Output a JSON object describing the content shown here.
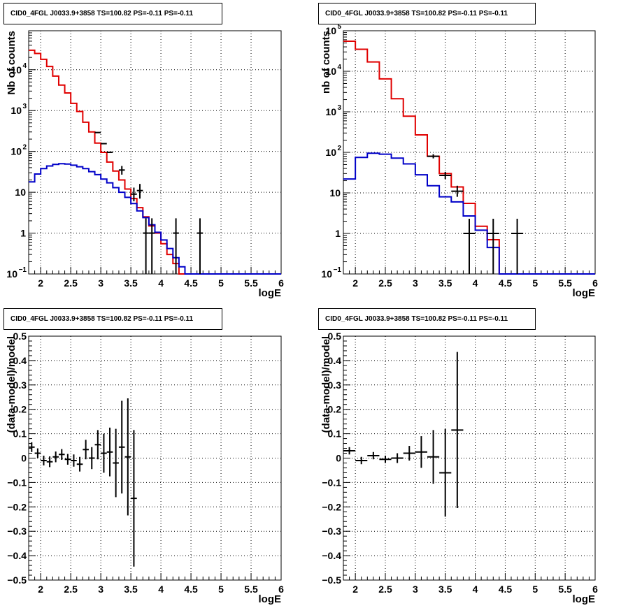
{
  "chart_data": [
    {
      "type": "histogram",
      "title": "CID0_4FGL J0033.9+3858 TS=100.82 PS=-0.11 PS=-0.11",
      "xlabel": "logE",
      "ylabel": "Nb of counts",
      "xlim": [
        1.8,
        6.0
      ],
      "ylim": [
        0.1,
        90000
      ],
      "yscale": "log",
      "grid": true,
      "x_ticks": [
        "2",
        "2.5",
        "3",
        "3.5",
        "4",
        "4.5",
        "5",
        "5.5",
        "6"
      ],
      "y_ticks": [
        {
          "v": 0.1,
          "label": "10",
          "exp": "−1"
        },
        {
          "v": 1,
          "label": "1",
          "exp": ""
        },
        {
          "v": 10,
          "label": "10",
          "exp": ""
        },
        {
          "v": 100,
          "label": "10",
          "exp": "2"
        },
        {
          "v": 1000,
          "label": "10",
          "exp": "3"
        },
        {
          "v": 10000,
          "label": "10",
          "exp": "4"
        }
      ],
      "bin_edges": [
        1.8,
        1.9,
        2.0,
        2.1,
        2.2,
        2.3,
        2.4,
        2.5,
        2.6,
        2.7,
        2.8,
        2.9,
        3.0,
        3.1,
        3.2,
        3.3,
        3.4,
        3.5,
        3.6,
        3.7,
        3.8,
        3.9,
        4.0,
        4.1,
        4.2,
        4.3,
        4.4,
        4.5,
        4.6,
        4.7,
        4.8,
        4.9,
        5.0,
        5.1,
        5.2,
        5.3,
        5.4,
        5.5,
        5.6,
        5.7,
        5.8,
        5.9,
        6.0
      ],
      "series": [
        {
          "name": "",
          "kind": "model-total",
          "color": "#e00000",
          "values": [
            30000,
            25000,
            18000,
            12000,
            7000,
            4200,
            2700,
            1500,
            950,
            520,
            300,
            160,
            95,
            55,
            33,
            20,
            12,
            7,
            4.2,
            2.5,
            1.5,
            1.0,
            0.55,
            0.3,
            0.18,
            0.1,
            0.1,
            0.1,
            0.1,
            0.1,
            0.1,
            0.1,
            0.1,
            0.1,
            0.1,
            0.1,
            0.1,
            0.1,
            0.1,
            0.1,
            0.1,
            0.1
          ]
        },
        {
          "name": "",
          "kind": "model-component",
          "color": "#0000c8",
          "values": [
            18,
            28,
            38,
            44,
            48,
            50,
            49,
            46,
            42,
            38,
            32,
            27,
            21,
            17,
            13,
            10,
            7.5,
            5.3,
            3.5,
            2.4,
            1.6,
            1.05,
            0.68,
            0.42,
            0.25,
            0.15,
            0.1,
            0.1,
            0.1,
            0.1,
            0.1,
            0.1,
            0.1,
            0.1,
            0.1,
            0.1,
            0.1,
            0.1,
            0.1,
            0.1,
            0.1,
            0.1
          ]
        },
        {
          "name": "",
          "kind": "data",
          "color": "#000000",
          "points": [
            {
              "x": 2.95,
              "y": 290,
              "xerr": 0.05
            },
            {
              "x": 3.05,
              "y": 155,
              "xerr": 0.05
            },
            {
              "x": 3.15,
              "y": 95,
              "xerr": 0.05
            },
            {
              "x": 3.35,
              "y": 35,
              "xerr": 0.05,
              "yerr": [
                8,
                9
              ]
            },
            {
              "x": 3.55,
              "y": 9,
              "xerr": 0.05,
              "yerr": [
                3,
                4
              ]
            },
            {
              "x": 3.65,
              "y": 11,
              "xerr": 0.05,
              "yerr": [
                4,
                5
              ]
            },
            {
              "x": 3.75,
              "y": 1,
              "xerr": 0.05,
              "yerr": [
                0.99,
                1.3
              ]
            },
            {
              "x": 3.85,
              "y": 1,
              "xerr": 0.05,
              "yerr": [
                0.99,
                1.3
              ]
            },
            {
              "x": 4.25,
              "y": 1,
              "xerr": 0.05,
              "yerr": [
                0.99,
                1.3
              ]
            },
            {
              "x": 4.65,
              "y": 1,
              "xerr": 0.05,
              "yerr": [
                0.99,
                1.3
              ]
            }
          ]
        }
      ]
    },
    {
      "type": "histogram",
      "title": "CID0_4FGL J0033.9+3858 TS=100.82 PS=-0.11 PS=-0.11",
      "xlabel": "logE",
      "ylabel": "nb of counts",
      "xlim": [
        1.8,
        6.0
      ],
      "ylim": [
        0.1,
        100000
      ],
      "yscale": "log",
      "grid": true,
      "x_ticks": [
        "2",
        "2.5",
        "3",
        "3.5",
        "4",
        "4.5",
        "5",
        "5.5",
        "6"
      ],
      "y_ticks": [
        {
          "v": 0.1,
          "label": "10",
          "exp": "−1"
        },
        {
          "v": 1,
          "label": "1",
          "exp": ""
        },
        {
          "v": 10,
          "label": "10",
          "exp": ""
        },
        {
          "v": 100,
          "label": "10",
          "exp": "2"
        },
        {
          "v": 1000,
          "label": "10",
          "exp": "3"
        },
        {
          "v": 10000,
          "label": "10",
          "exp": "4"
        },
        {
          "v": 100000,
          "label": "10",
          "exp": "5"
        }
      ],
      "bin_edges": [
        1.8,
        2.0,
        2.2,
        2.4,
        2.6,
        2.8,
        3.0,
        3.2,
        3.4,
        3.6,
        3.8,
        4.0,
        4.2,
        4.4,
        4.6,
        4.8,
        5.0,
        5.2,
        5.4,
        5.6,
        5.8,
        6.0
      ],
      "series": [
        {
          "name": "",
          "kind": "model-total",
          "color": "#e00000",
          "values": [
            55000,
            35000,
            17000,
            6500,
            2100,
            780,
            270,
            80,
            30,
            14,
            5.5,
            1.5,
            0.7,
            0.1,
            0.1,
            0.1,
            0.1,
            0.1,
            0.1,
            0.1,
            0.1
          ]
        },
        {
          "name": "",
          "kind": "model-component",
          "color": "#0000c8",
          "values": [
            22,
            75,
            95,
            90,
            72,
            52,
            28,
            15,
            8,
            6,
            2.7,
            1.2,
            0.45,
            0.1,
            0.1,
            0.1,
            0.1,
            0.1,
            0.1,
            0.1,
            0.1
          ]
        },
        {
          "name": "",
          "kind": "data",
          "color": "#000000",
          "points": [
            {
              "x": 3.3,
              "y": 80,
              "xerr": 0.1,
              "yerr": [
                9,
                10
              ]
            },
            {
              "x": 3.5,
              "y": 27,
              "xerr": 0.1,
              "yerr": [
                5,
                6
              ]
            },
            {
              "x": 3.7,
              "y": 11,
              "xerr": 0.1,
              "yerr": [
                3,
                4
              ]
            },
            {
              "x": 3.9,
              "y": 1,
              "xerr": 0.1,
              "yerr": [
                0.99,
                1.3
              ]
            },
            {
              "x": 4.3,
              "y": 1,
              "xerr": 0.1,
              "yerr": [
                0.99,
                1.3
              ]
            },
            {
              "x": 4.7,
              "y": 1,
              "xerr": 0.1,
              "yerr": [
                0.99,
                1.3
              ]
            }
          ]
        }
      ]
    },
    {
      "type": "scatter",
      "title": "CID0_4FGL J0033.9+3858 TS=100.82 PS=-0.11 PS=-0.11",
      "xlabel": "logE",
      "ylabel": "(data-model)/model",
      "xlim": [
        1.8,
        6.0
      ],
      "ylim": [
        -0.5,
        0.5
      ],
      "yscale": "linear",
      "grid": true,
      "x_ticks": [
        "2",
        "2.5",
        "3",
        "3.5",
        "4",
        "4.5",
        "5",
        "5.5",
        "6"
      ],
      "y_ticks": [
        "−0.5",
        "−0.4",
        "−0.3",
        "−0.2",
        "−0.1",
        "0",
        "0.1",
        "0.2",
        "0.3",
        "0.4",
        "0.5"
      ],
      "series": [
        {
          "name": "",
          "kind": "residuals",
          "color": "#000000",
          "points": [
            {
              "x": 1.85,
              "y": 0.045,
              "xerr": 0.05,
              "yerr": 0.02
            },
            {
              "x": 1.95,
              "y": 0.02,
              "xerr": 0.05,
              "yerr": 0.02
            },
            {
              "x": 2.05,
              "y": -0.01,
              "xerr": 0.05,
              "yerr": 0.02
            },
            {
              "x": 2.15,
              "y": -0.015,
              "xerr": 0.05,
              "yerr": 0.022
            },
            {
              "x": 2.25,
              "y": 0.005,
              "xerr": 0.05,
              "yerr": 0.022
            },
            {
              "x": 2.35,
              "y": 0.015,
              "xerr": 0.05,
              "yerr": 0.022
            },
            {
              "x": 2.45,
              "y": -0.005,
              "xerr": 0.05,
              "yerr": 0.022
            },
            {
              "x": 2.55,
              "y": -0.01,
              "xerr": 0.05,
              "yerr": 0.025
            },
            {
              "x": 2.65,
              "y": -0.025,
              "xerr": 0.05,
              "yerr": 0.03
            },
            {
              "x": 2.75,
              "y": 0.035,
              "xerr": 0.05,
              "yerr": 0.04
            },
            {
              "x": 2.85,
              "y": 0.0,
              "xerr": 0.05,
              "yerr": 0.045
            },
            {
              "x": 2.95,
              "y": 0.055,
              "xerr": 0.05,
              "yerr": 0.06
            },
            {
              "x": 3.05,
              "y": 0.02,
              "xerr": 0.05,
              "yerr": 0.08
            },
            {
              "x": 3.15,
              "y": 0.025,
              "xerr": 0.05,
              "yerr": 0.1
            },
            {
              "x": 3.25,
              "y": -0.02,
              "xerr": 0.05,
              "yerr": 0.14
            },
            {
              "x": 3.35,
              "y": 0.045,
              "xerr": 0.05,
              "yerr": 0.19
            },
            {
              "x": 3.45,
              "y": 0.005,
              "xerr": 0.05,
              "yerr": 0.24
            },
            {
              "x": 3.55,
              "y": -0.165,
              "xerr": 0.05,
              "yerr": 0.28
            }
          ]
        }
      ]
    },
    {
      "type": "scatter",
      "title": "CID0_4FGL J0033.9+3858 TS=100.82 PS=-0.11 PS=-0.11",
      "xlabel": "logE",
      "ylabel": "(data-model)/model",
      "xlim": [
        1.8,
        6.0
      ],
      "ylim": [
        -0.5,
        0.5
      ],
      "yscale": "linear",
      "grid": true,
      "x_ticks": [
        "2",
        "2.5",
        "3",
        "3.5",
        "4",
        "4.5",
        "5",
        "5.5",
        "6"
      ],
      "y_ticks": [
        "−0.5",
        "−0.4",
        "−0.3",
        "−0.2",
        "−0.1",
        "0",
        "0.1",
        "0.2",
        "0.3",
        "0.4",
        "0.5"
      ],
      "series": [
        {
          "name": "",
          "kind": "residuals",
          "color": "#000000",
          "points": [
            {
              "x": 1.9,
              "y": 0.03,
              "xerr": 0.1,
              "yerr": 0.015
            },
            {
              "x": 2.1,
              "y": -0.01,
              "xerr": 0.1,
              "yerr": 0.015
            },
            {
              "x": 2.3,
              "y": 0.01,
              "xerr": 0.1,
              "yerr": 0.015
            },
            {
              "x": 2.5,
              "y": -0.005,
              "xerr": 0.1,
              "yerr": 0.015
            },
            {
              "x": 2.7,
              "y": 0.0,
              "xerr": 0.1,
              "yerr": 0.02
            },
            {
              "x": 2.9,
              "y": 0.02,
              "xerr": 0.1,
              "yerr": 0.03
            },
            {
              "x": 3.1,
              "y": 0.025,
              "xerr": 0.1,
              "yerr": 0.065
            },
            {
              "x": 3.3,
              "y": 0.005,
              "xerr": 0.1,
              "yerr": 0.11
            },
            {
              "x": 3.5,
              "y": -0.06,
              "xerr": 0.1,
              "yerr": 0.18
            },
            {
              "x": 3.7,
              "y": 0.115,
              "xerr": 0.1,
              "yerr": 0.32
            }
          ]
        }
      ]
    }
  ]
}
